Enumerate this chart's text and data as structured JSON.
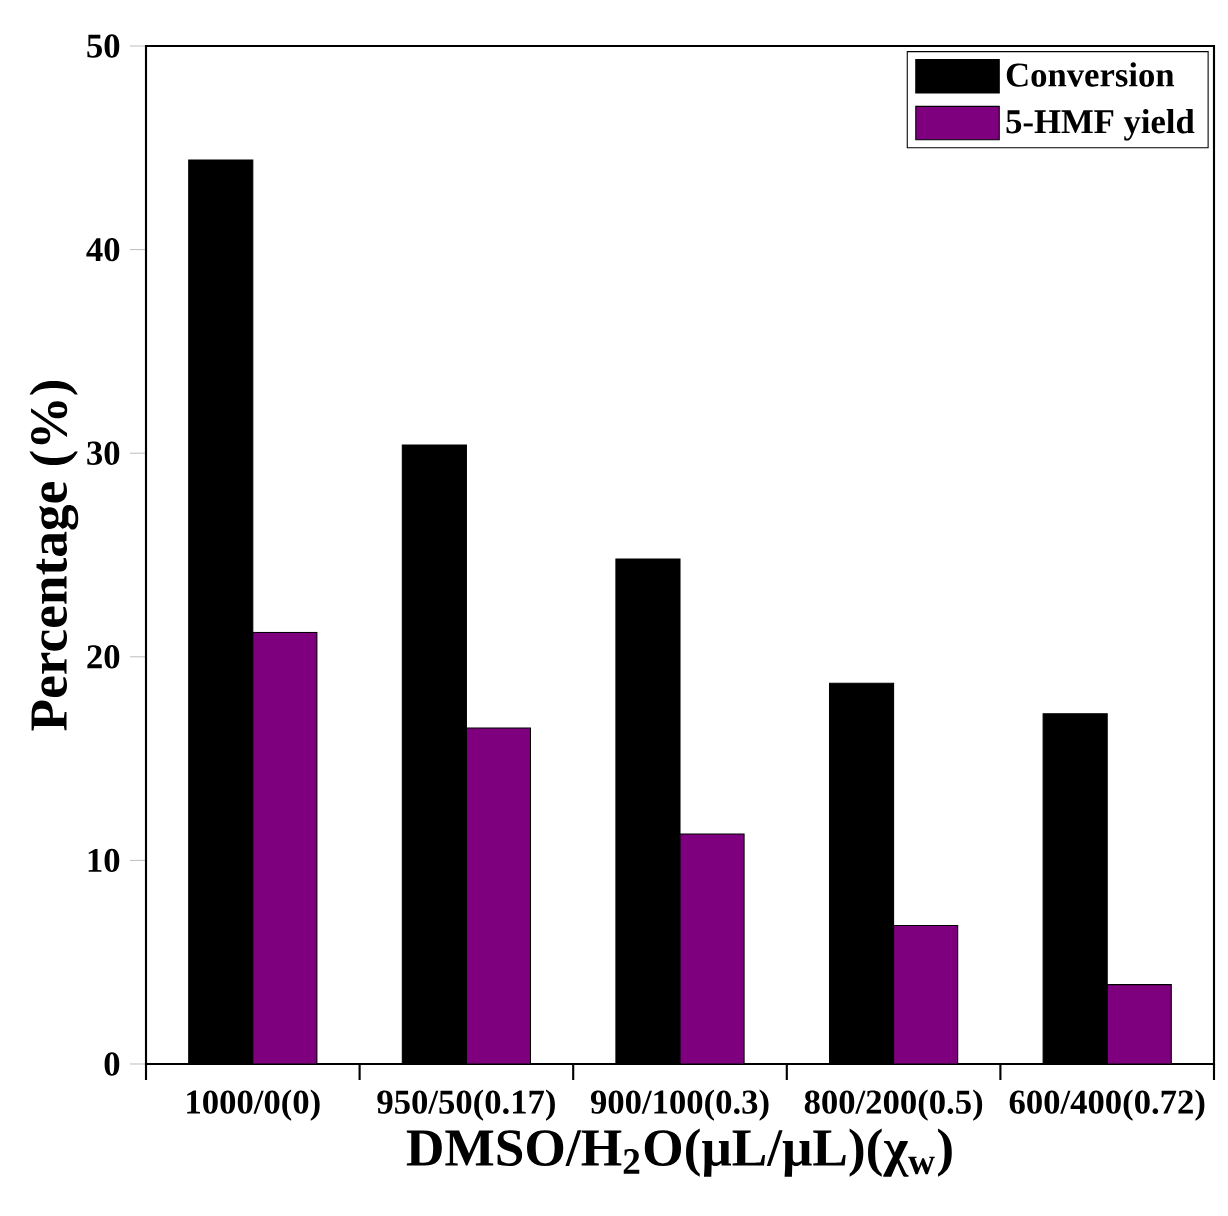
{
  "chart_data": {
    "type": "bar",
    "xlabel": "DMSO/H$_{2}$O(μL/μL)(χ$_{w}$)",
    "ylabel": "Percentage (%)",
    "categories": [
      "1000/0(0)",
      "950/50(0.17)",
      "900/100(0.3)",
      "800/200(0.5)",
      "600/400(0.72)"
    ],
    "series": [
      {
        "name": "Conversion",
        "color": "#000000",
        "values": [
          44.4,
          30.4,
          24.8,
          18.7,
          17.2
        ]
      },
      {
        "name": "5-HMF yield",
        "color": "#7f007f",
        "values": [
          21.2,
          16.5,
          11.3,
          6.8,
          3.9
        ]
      }
    ],
    "ylim": [
      0,
      50
    ],
    "yticks": [
      0,
      10,
      20,
      30,
      40,
      50
    ],
    "grid": false,
    "legend": "top right"
  }
}
